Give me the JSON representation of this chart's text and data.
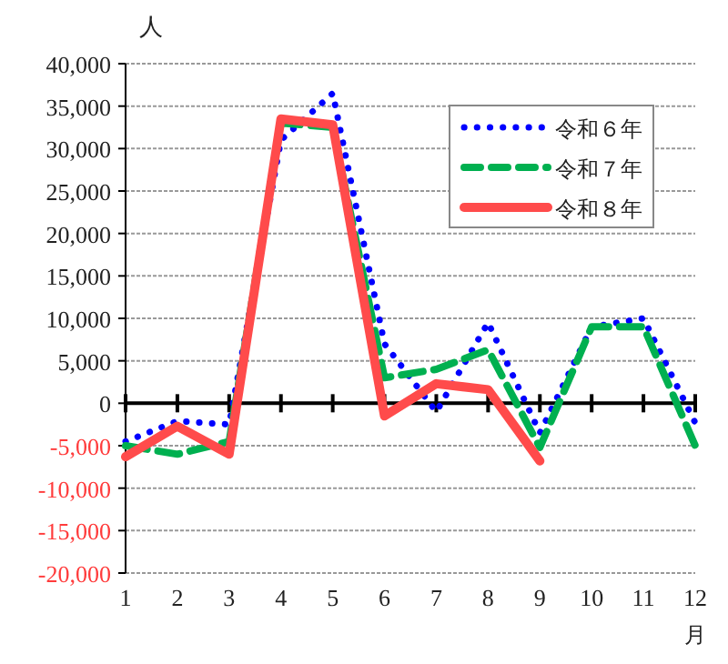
{
  "chart_data": {
    "type": "line",
    "ylabel": "人",
    "xlabel": "月",
    "x": [
      1,
      2,
      3,
      4,
      5,
      6,
      7,
      8,
      9,
      10,
      11,
      12
    ],
    "xlim": [
      1,
      12
    ],
    "xticks": [
      1,
      2,
      3,
      4,
      5,
      6,
      7,
      8,
      9,
      10,
      11,
      12
    ],
    "ylim": [
      -20000,
      40000
    ],
    "yticks": [
      {
        "value": 40000,
        "label": "40,000"
      },
      {
        "value": 35000,
        "label": "35,000"
      },
      {
        "value": 30000,
        "label": "30,000"
      },
      {
        "value": 25000,
        "label": "25,000"
      },
      {
        "value": 20000,
        "label": "20,000"
      },
      {
        "value": 15000,
        "label": "15,000"
      },
      {
        "value": 10000,
        "label": "10,000"
      },
      {
        "value": 5000,
        "label": "5,000"
      },
      0,
      {
        "value": -5000,
        "label": "-5,000"
      },
      {
        "value": -10000,
        "label": "-10,000"
      },
      {
        "value": -15000,
        "label": "-15,000"
      },
      {
        "value": -20000,
        "label": "-20,000"
      }
    ],
    "grid": "y",
    "legend": "top right",
    "marker": "none",
    "series": [
      {
        "name": "令和６年",
        "color": "#0000ff",
        "line_style": "dotted",
        "values": [
          -4500,
          -2100,
          -2500,
          31000,
          36500,
          7000,
          -1000,
          9500,
          -3500,
          9000,
          10000,
          -2300
        ]
      },
      {
        "name": "令和７年",
        "color": "#00b050",
        "line_style": "dashed",
        "values": [
          -5000,
          -6000,
          -4500,
          33000,
          32500,
          3000,
          4000,
          6300,
          -5200,
          9000,
          9000,
          -5000
        ]
      },
      {
        "name": "令和８年",
        "color": "#ff4b4b",
        "line_style": "solid",
        "values": [
          -6300,
          -2700,
          -6000,
          33500,
          32800,
          -1500,
          2300,
          1600,
          -6800,
          null,
          null,
          null
        ]
      }
    ]
  }
}
